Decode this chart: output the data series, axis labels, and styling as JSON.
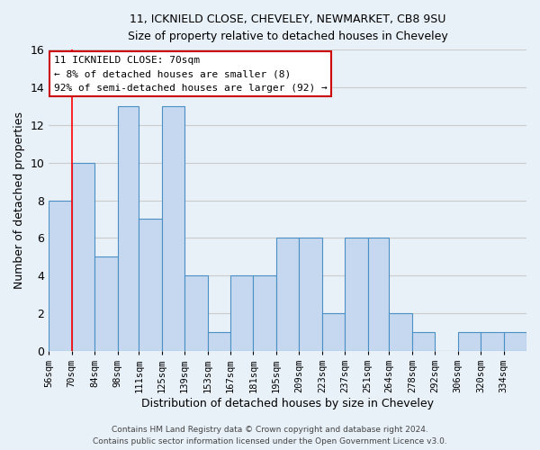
{
  "title_line1": "11, ICKNIELD CLOSE, CHEVELEY, NEWMARKET, CB8 9SU",
  "title_line2": "Size of property relative to detached houses in Cheveley",
  "xlabel": "Distribution of detached houses by size in Cheveley",
  "ylabel": "Number of detached properties",
  "bin_labels": [
    "56sqm",
    "70sqm",
    "84sqm",
    "98sqm",
    "111sqm",
    "125sqm",
    "139sqm",
    "153sqm",
    "167sqm",
    "181sqm",
    "195sqm",
    "209sqm",
    "223sqm",
    "237sqm",
    "251sqm",
    "264sqm",
    "278sqm",
    "292sqm",
    "306sqm",
    "320sqm",
    "334sqm"
  ],
  "bin_edges": [
    56,
    70,
    84,
    98,
    111,
    125,
    139,
    153,
    167,
    181,
    195,
    209,
    223,
    237,
    251,
    264,
    278,
    292,
    306,
    320,
    334,
    348
  ],
  "counts": [
    8,
    10,
    5,
    13,
    7,
    13,
    4,
    1,
    4,
    4,
    6,
    6,
    2,
    6,
    6,
    2,
    1,
    0,
    1,
    1,
    1
  ],
  "bar_color": "#c5d8f0",
  "bar_edge_color": "#4a90c4",
  "grid_color": "#cccccc",
  "bg_color": "#e8f0f8",
  "red_line_x": 70,
  "annotation_title": "11 ICKNIELD CLOSE: 70sqm",
  "annotation_line2": "← 8% of detached houses are smaller (8)",
  "annotation_line3": "92% of semi-detached houses are larger (92) →",
  "annotation_box_facecolor": "#ffffff",
  "annotation_box_edgecolor": "#cc0000",
  "ylim": [
    0,
    16
  ],
  "yticks": [
    0,
    2,
    4,
    6,
    8,
    10,
    12,
    14,
    16
  ],
  "footer_line1": "Contains HM Land Registry data © Crown copyright and database right 2024.",
  "footer_line2": "Contains public sector information licensed under the Open Government Licence v3.0."
}
